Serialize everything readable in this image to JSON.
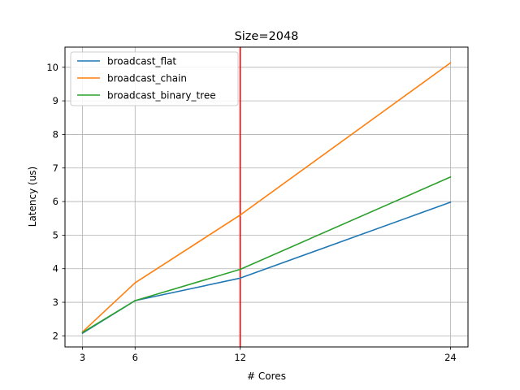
{
  "chart_data": {
    "type": "line",
    "title": "Size=2048",
    "xlabel": "# Cores",
    "ylabel": "Latency (us)",
    "x": [
      3,
      6,
      12,
      24
    ],
    "x_ticks": [
      "3",
      "6",
      "12",
      "24"
    ],
    "xlim": [
      2,
      25
    ],
    "ylim": [
      1.67,
      10.6
    ],
    "y_ticks": [
      "2",
      "3",
      "4",
      "5",
      "6",
      "7",
      "8",
      "9",
      "10"
    ],
    "grid": true,
    "legend_position": "top-left",
    "series": [
      {
        "name": "broadcast_flat",
        "color": "#1f77b4",
        "values": [
          2.08,
          3.05,
          3.72,
          5.98
        ]
      },
      {
        "name": "broadcast_chain",
        "color": "#ff7f0e",
        "values": [
          2.12,
          3.58,
          5.6,
          10.13
        ]
      },
      {
        "name": "broadcast_binary_tree",
        "color": "#2ca02c",
        "values": [
          2.1,
          3.05,
          3.98,
          6.73
        ]
      }
    ],
    "vline": {
      "x": 12,
      "color": "#ff0000"
    }
  }
}
